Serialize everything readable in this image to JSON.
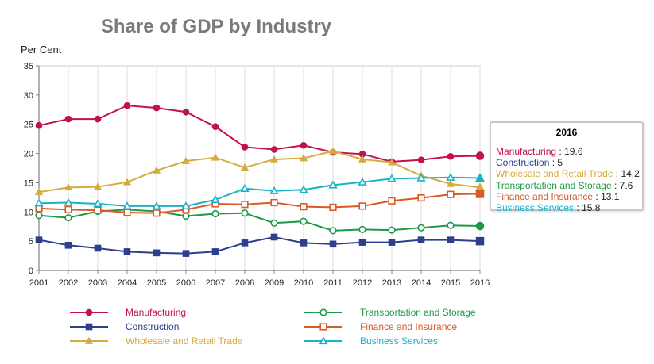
{
  "chart_data": {
    "type": "line",
    "title": "Share of GDP by Industry",
    "ylabel": "Per Cent",
    "xlabel": "",
    "ylim": [
      0,
      35
    ],
    "yticks": [
      0,
      5,
      10,
      15,
      20,
      25,
      30,
      35
    ],
    "categories": [
      "2001",
      "2002",
      "2003",
      "2004",
      "2005",
      "2006",
      "2007",
      "2008",
      "2009",
      "2010",
      "2011",
      "2012",
      "2013",
      "2014",
      "2015",
      "2016"
    ],
    "grid": "vertical",
    "legend_position": "bottom",
    "series": [
      {
        "name": "Manufacturing",
        "color": "#c0134d",
        "marker": "circle-filled",
        "values": [
          24.8,
          25.9,
          25.9,
          28.2,
          27.8,
          27.1,
          24.6,
          21.1,
          20.7,
          21.4,
          20.2,
          19.9,
          18.6,
          18.9,
          19.5,
          19.6
        ]
      },
      {
        "name": "Construction",
        "color": "#2c3e8c",
        "marker": "square-filled",
        "values": [
          5.2,
          4.3,
          3.8,
          3.2,
          3.0,
          2.9,
          3.2,
          4.7,
          5.7,
          4.7,
          4.5,
          4.8,
          4.8,
          5.2,
          5.2,
          5.0
        ]
      },
      {
        "name": "Wholesale and Retail Trade",
        "color": "#d4ac3e",
        "marker": "triangle-filled",
        "values": [
          13.4,
          14.2,
          14.3,
          15.1,
          17.1,
          18.7,
          19.3,
          17.6,
          19.0,
          19.2,
          20.4,
          19.0,
          18.5,
          16.2,
          14.8,
          14.2
        ]
      },
      {
        "name": "Transportation and Storage",
        "color": "#1c9a48",
        "marker": "circle-open",
        "values": [
          9.4,
          9.0,
          10.1,
          10.4,
          10.1,
          9.3,
          9.7,
          9.8,
          8.1,
          8.4,
          6.8,
          7.0,
          6.9,
          7.3,
          7.7,
          7.6
        ]
      },
      {
        "name": "Finance and Insurance",
        "color": "#dc5a24",
        "marker": "square-open",
        "values": [
          10.6,
          10.4,
          10.3,
          9.9,
          9.8,
          10.4,
          11.4,
          11.3,
          11.6,
          10.9,
          10.8,
          11.0,
          11.9,
          12.4,
          13.0,
          13.1
        ]
      },
      {
        "name": "Business Services",
        "color": "#1ab2c6",
        "marker": "triangle-open",
        "values": [
          11.5,
          11.6,
          11.4,
          11.0,
          11.0,
          11.0,
          12.1,
          14.0,
          13.6,
          13.8,
          14.6,
          15.1,
          15.7,
          15.8,
          15.9,
          15.8
        ]
      }
    ]
  },
  "tooltip": {
    "year": "2016",
    "rows": [
      {
        "name": "Manufacturing",
        "value": "19.6",
        "color": "#c0134d"
      },
      {
        "name": "Construction",
        "value": "5",
        "color": "#2c3e8c"
      },
      {
        "name": "Wholesale and Retail Trade",
        "value": "14.2",
        "color": "#d4ac3e"
      },
      {
        "name": "Transportation and Storage",
        "value": "7.6",
        "color": "#1c9a48"
      },
      {
        "name": "Finance and Insurance",
        "value": "13.1",
        "color": "#dc5a24"
      },
      {
        "name": "Business Services",
        "value": "15.8",
        "color": "#1ab2c6"
      }
    ]
  }
}
